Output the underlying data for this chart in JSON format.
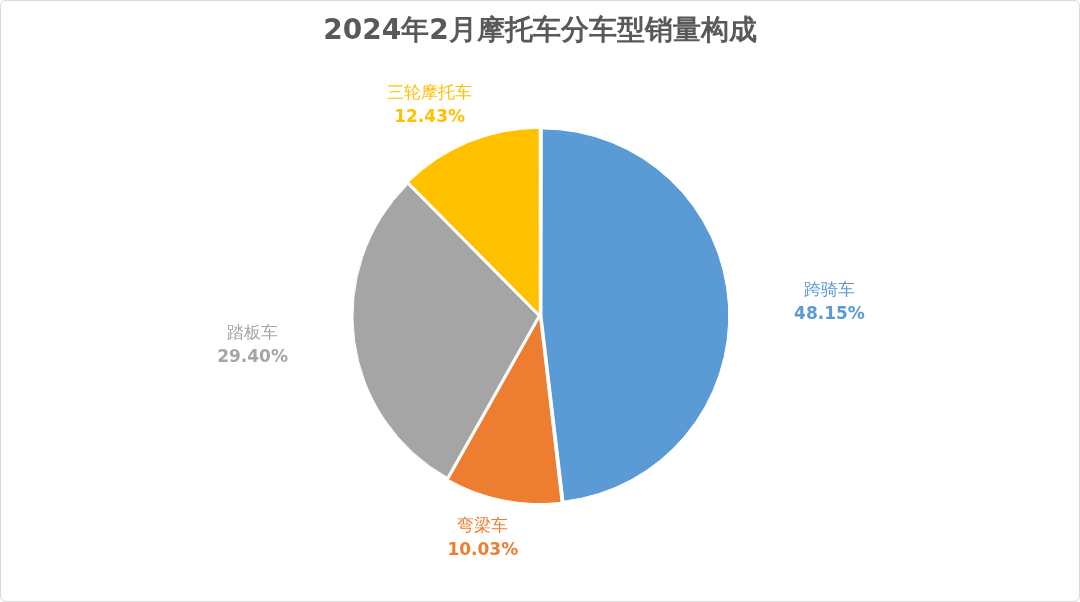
{
  "chart_data": {
    "type": "pie",
    "title": "2024年2月摩托车分车型销量构成",
    "categories": [
      "跨骑车",
      "弯梁车",
      "踏板车",
      "三轮摩托车"
    ],
    "values": [
      48.15,
      10.03,
      29.4,
      12.43
    ],
    "colors": [
      "#5b9bd5",
      "#ed7d31",
      "#a5a5a5",
      "#ffc000"
    ],
    "value_labels": [
      "48.15%",
      "10.03%",
      "29.40%",
      "12.43%"
    ]
  }
}
